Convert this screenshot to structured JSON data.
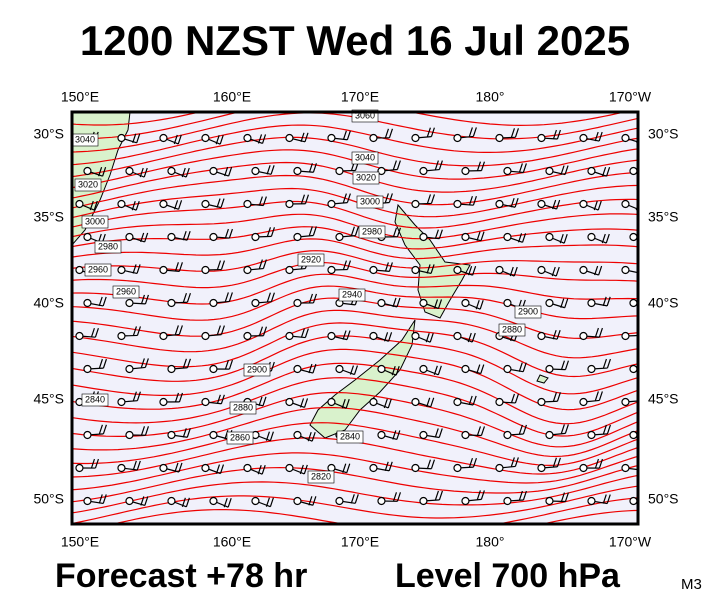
{
  "header": {
    "title": "1200 NZST Wed 16 Jul 2025"
  },
  "map": {
    "lon_labels": [
      "150°E",
      "160°E",
      "170°E",
      "180°",
      "170°W"
    ],
    "lat_labels": [
      "30°S",
      "35°S",
      "40°S",
      "45°S",
      "50°S"
    ],
    "contour_labels": [
      "3060",
      "3040",
      "3040",
      "3020",
      "3020",
      "3000",
      "3000",
      "2980",
      "2980",
      "2960",
      "2960",
      "2940",
      "2920",
      "2900",
      "2900",
      "2880",
      "2880",
      "2860",
      "2840",
      "2840",
      "2820"
    ]
  },
  "footer": {
    "forecast": "Forecast +78 hr",
    "level": "Level 700 hPa",
    "model": "M3"
  }
}
